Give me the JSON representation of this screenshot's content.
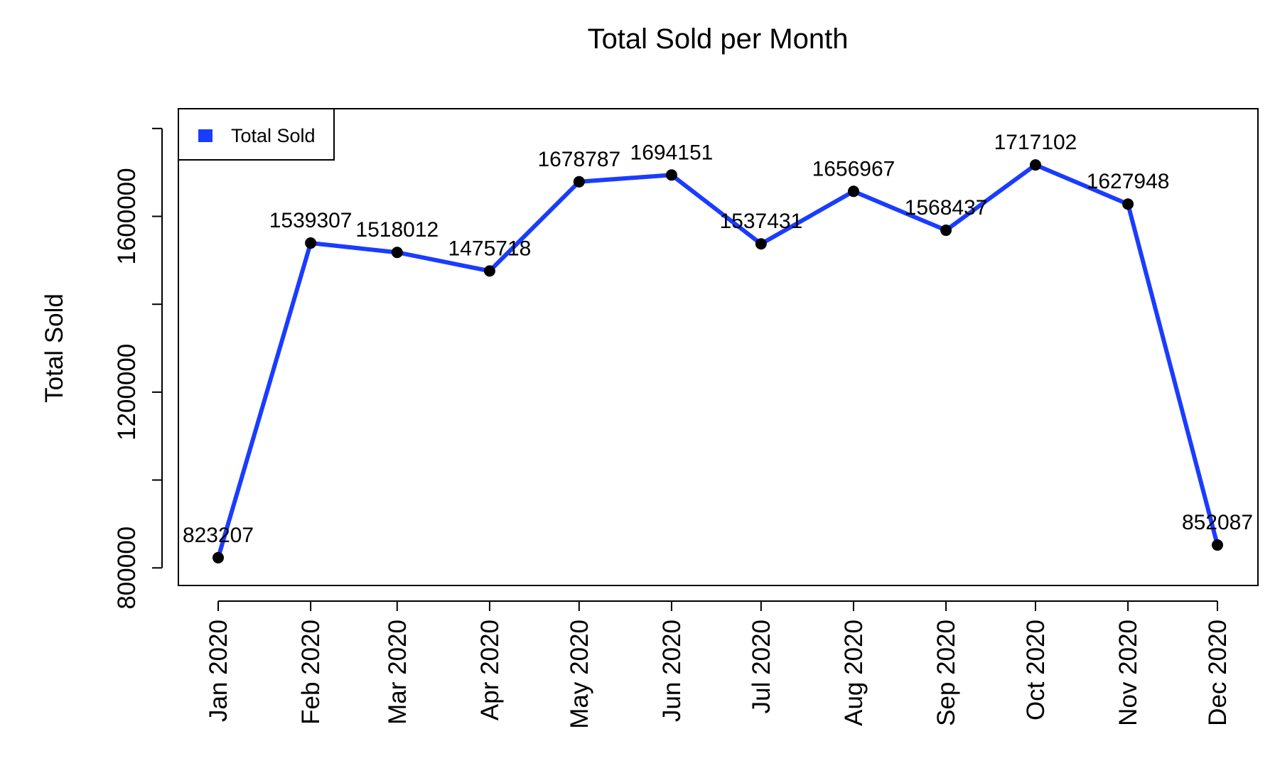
{
  "chart_data": {
    "type": "line",
    "title": "Total Sold per Month",
    "xlabel": "",
    "ylabel": "Total Sold",
    "categories": [
      "Jan 2020",
      "Feb 2020",
      "Mar 2020",
      "Apr 2020",
      "May 2020",
      "Jun 2020",
      "Jul 2020",
      "Aug 2020",
      "Sep 2020",
      "Oct 2020",
      "Nov 2020",
      "Dec 2020"
    ],
    "x_days": [
      0,
      31,
      60,
      91,
      121,
      152,
      182,
      213,
      244,
      274,
      305,
      335
    ],
    "series": [
      {
        "name": "Total Sold",
        "color": "#1a3cff",
        "values": [
          823207,
          1539307,
          1518012,
          1475718,
          1678787,
          1694151,
          1537431,
          1656967,
          1568437,
          1717102,
          1627948,
          852087
        ],
        "data_labels": [
          "823207",
          "1539307",
          "1518012",
          "1475718",
          "1678787",
          "1694151",
          "1537431",
          "1656967",
          "1568437",
          "1717102",
          "1627948",
          "852087"
        ]
      }
    ],
    "yticks": [
      800000,
      1000000,
      1200000,
      1400000,
      1600000,
      1800000
    ],
    "ytick_labels": [
      "800000",
      "",
      "1200000",
      "",
      "1600000",
      ""
    ],
    "ylim": [
      760000,
      1845000
    ],
    "grid": false,
    "legend": {
      "position": "top-left",
      "label": "Total Sold",
      "color": "#1a3cff"
    }
  }
}
